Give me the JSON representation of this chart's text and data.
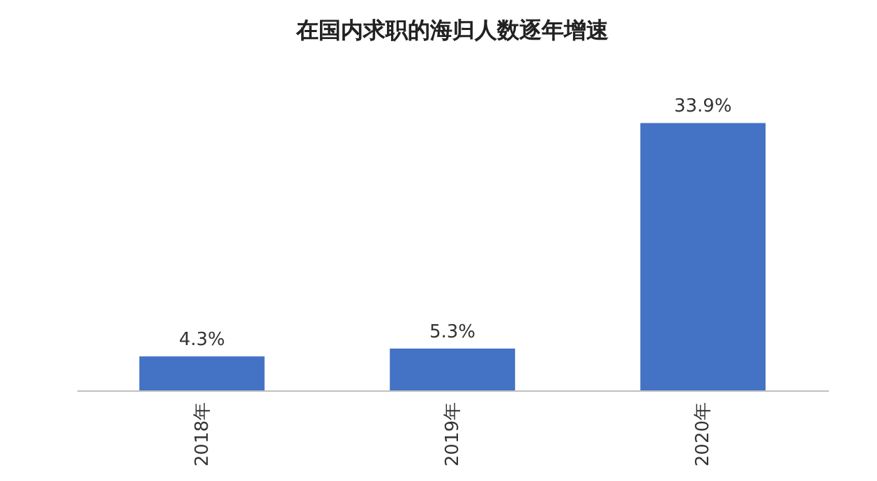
{
  "chart_data": {
    "type": "bar",
    "title": "在国内求职的海归人数逐年增速",
    "categories": [
      "2018年",
      "2019年",
      "2020年"
    ],
    "values": [
      4.3,
      5.3,
      33.9
    ],
    "value_labels": [
      "4.3%",
      "5.3%",
      "33.9%"
    ],
    "color": "#4472c4"
  }
}
